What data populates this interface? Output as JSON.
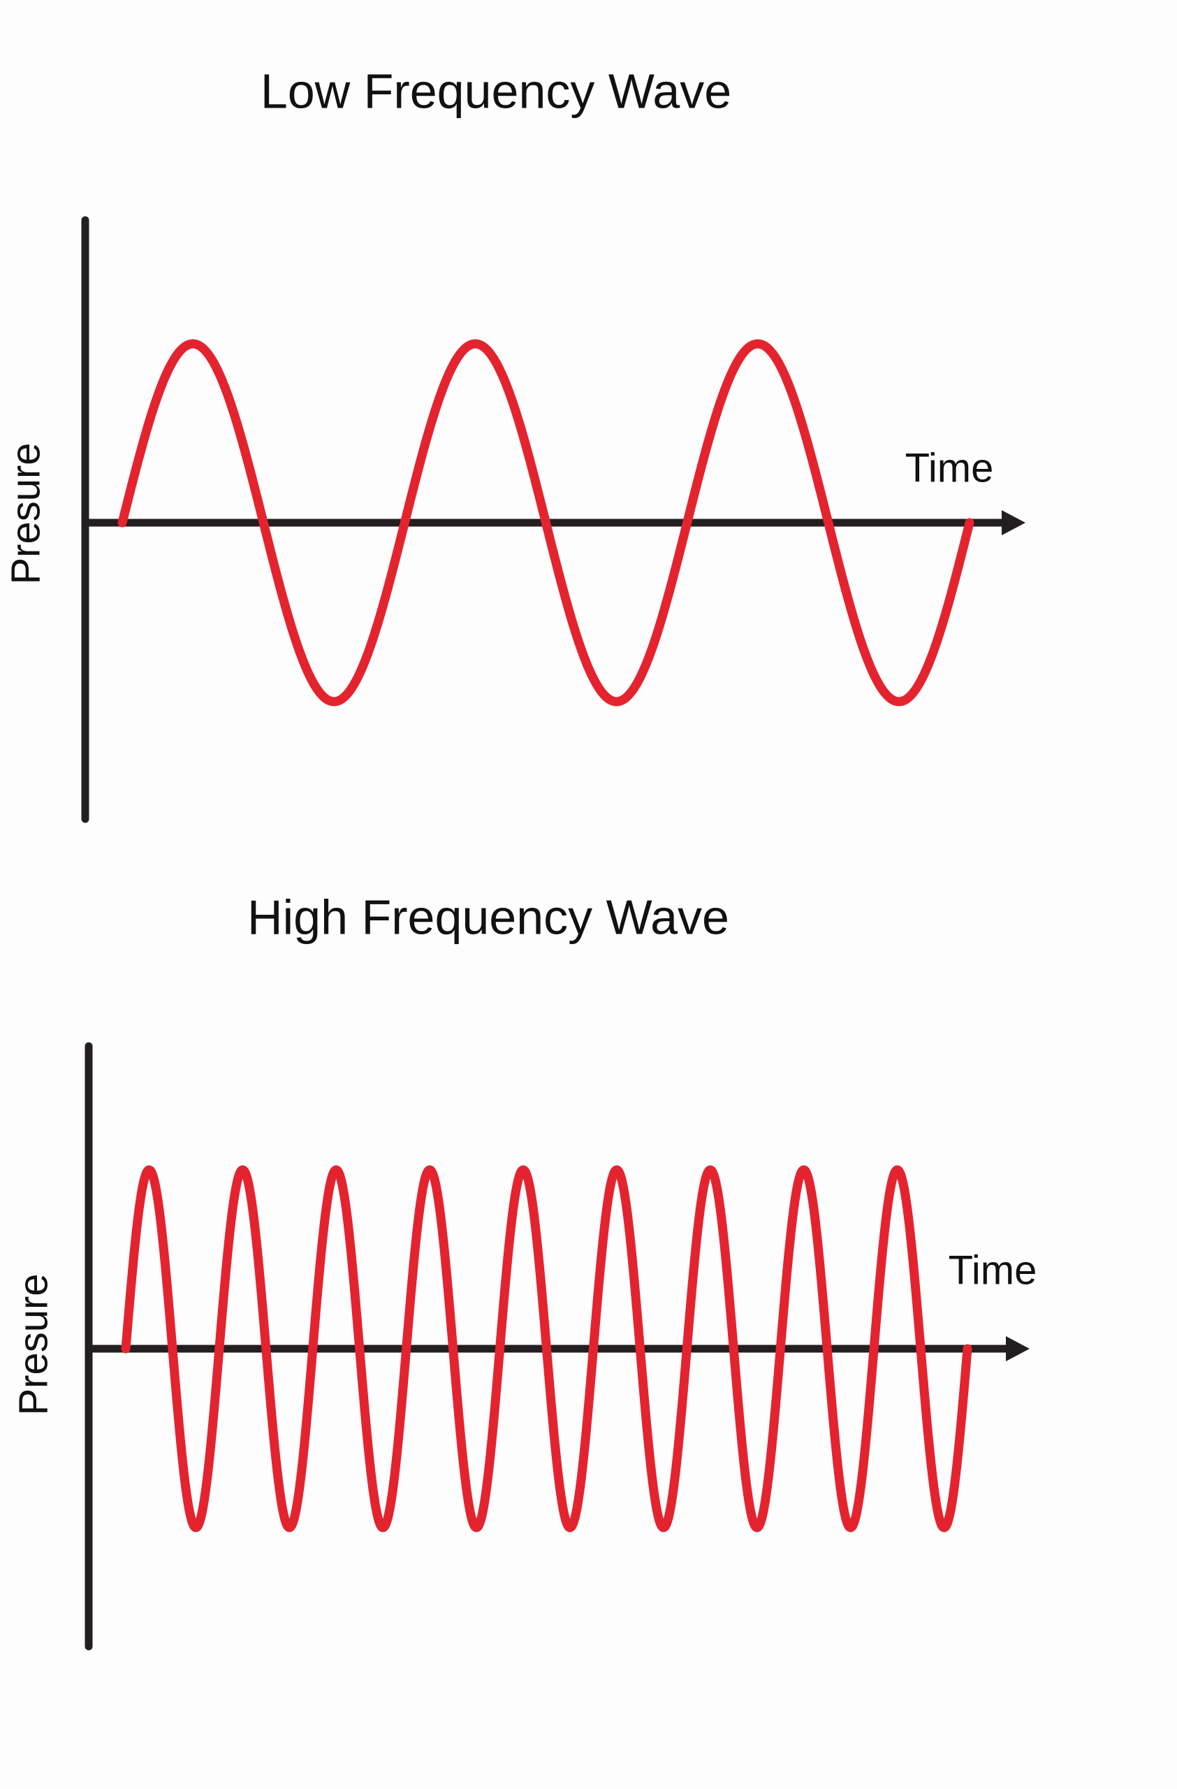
{
  "panels": [
    {
      "title": "Low Frequency Wave",
      "y_label": "Presure",
      "x_label": "Time"
    },
    {
      "title": "High Frequency Wave",
      "y_label": "Presure",
      "x_label": "Time"
    }
  ]
}
